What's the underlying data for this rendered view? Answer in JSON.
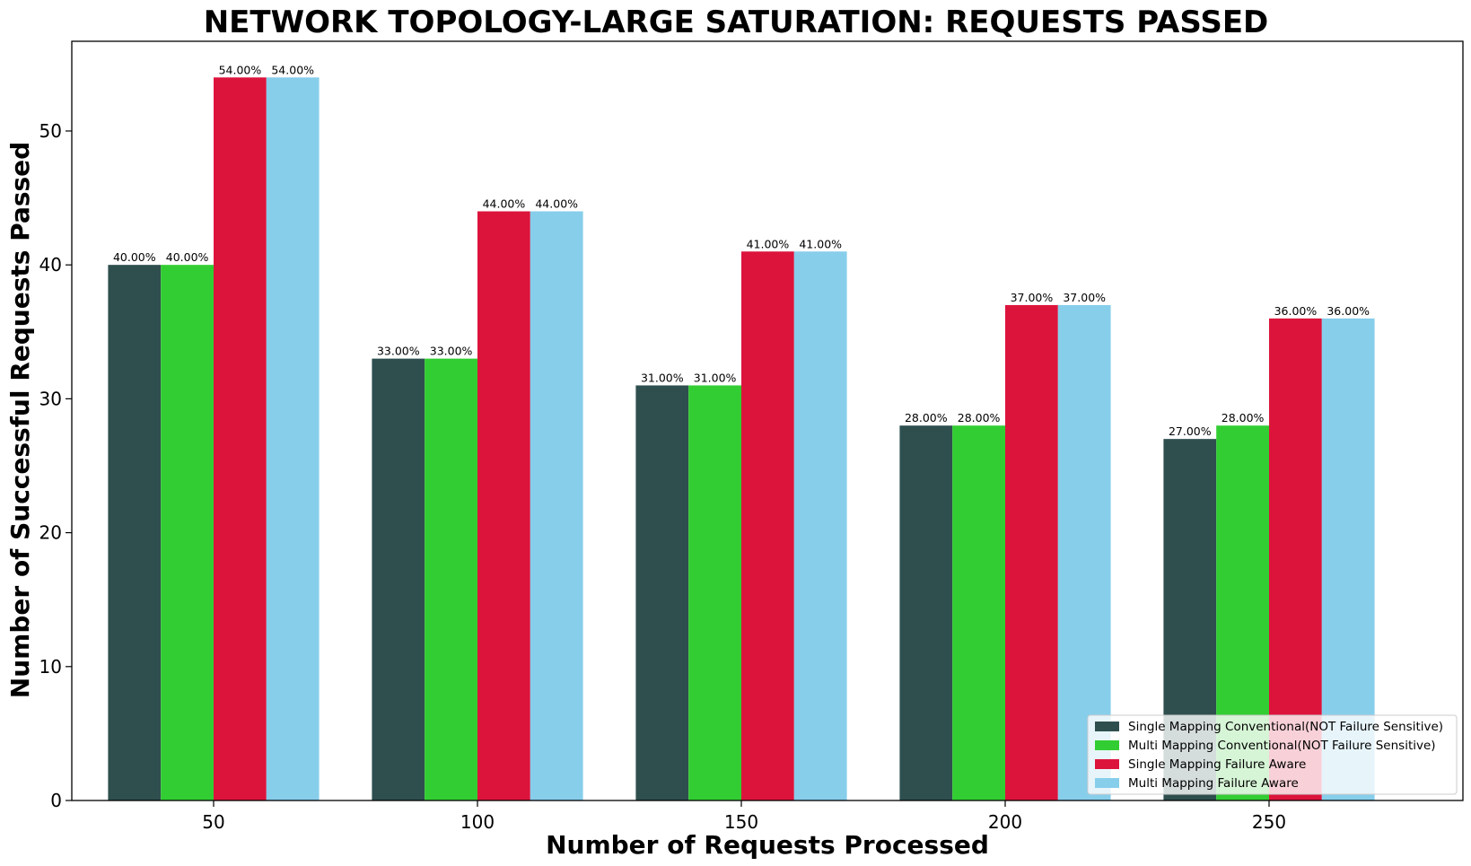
{
  "chart_data": {
    "type": "bar",
    "title": "NETWORK TOPOLOGY-LARGE SATURATION: REQUESTS PASSED",
    "xlabel": "Number of Requests Processed",
    "ylabel": "Number of Successful Requests Passed",
    "categories": [
      "50",
      "100",
      "150",
      "200",
      "250"
    ],
    "ylim": [
      0,
      56.7
    ],
    "yticks": [
      0,
      10,
      20,
      30,
      40,
      50
    ],
    "legend_position": "lower-right",
    "grid": false,
    "series": [
      {
        "name": "Single Mapping Conventional(NOT Failure Sensitive)",
        "color": "#2f4f4f",
        "values": [
          40,
          33,
          31,
          28,
          27
        ],
        "labels": [
          "40.00%",
          "33.00%",
          "31.00%",
          "28.00%",
          "27.00%"
        ]
      },
      {
        "name": "Multi Mapping Conventional(NOT Failure Sensitive)",
        "color": "#32cd32",
        "values": [
          40,
          33,
          31,
          28,
          28
        ],
        "labels": [
          "40.00%",
          "33.00%",
          "31.00%",
          "28.00%",
          "28.00%"
        ]
      },
      {
        "name": "Single Mapping Failure Aware",
        "color": "#dc143c",
        "values": [
          54,
          44,
          41,
          37,
          36
        ],
        "labels": [
          "54.00%",
          "44.00%",
          "41.00%",
          "37.00%",
          "36.00%"
        ]
      },
      {
        "name": "Multi Mapping Failure Aware",
        "color": "#87ceeb",
        "values": [
          54,
          44,
          41,
          37,
          36
        ],
        "labels": [
          "54.00%",
          "44.00%",
          "41.00%",
          "37.00%",
          "36.00%"
        ]
      }
    ]
  }
}
